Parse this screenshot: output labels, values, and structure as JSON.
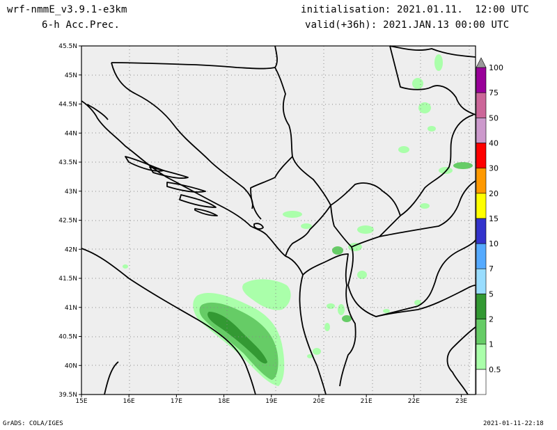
{
  "header": {
    "model": "wrf-nmmE_v3.9.1-e3km",
    "field": "6-h Acc.Prec.",
    "init": "initialisation: 2021.01.11.  12:00 UTC",
    "valid": "valid(+36h): 2021.JAN.13 00:00 UTC"
  },
  "footer": {
    "credit": "GrADS: COLA/IGES",
    "timestamp": "2021-01-11-22:18"
  },
  "map": {
    "lat_labels": [
      "45.5N",
      "45N",
      "44.5N",
      "44N",
      "43.5N",
      "43N",
      "42.5N",
      "42N",
      "41.5N",
      "41N",
      "40.5N",
      "40N",
      "39.5N"
    ],
    "lon_labels": [
      "15E",
      "16E",
      "17E",
      "18E",
      "19E",
      "20E",
      "21E",
      "22E",
      "23E"
    ],
    "lat_range": [
      39.5,
      45.5
    ],
    "lon_range": [
      15.0,
      23.3
    ],
    "grid": "dotted",
    "land_color": "#eeeeee"
  },
  "colorbar": {
    "levels": [
      "0.5",
      "1",
      "2",
      "5",
      "7",
      "10",
      "15",
      "20",
      "30",
      "40",
      "50",
      "75",
      "100"
    ],
    "colors": [
      "#aaffaa",
      "#66cc66",
      "#339933",
      "#99ddff",
      "#55aaff",
      "#3333cc",
      "#ffff00",
      "#ff9900",
      "#ff0000",
      "#cc99cc",
      "#cc6699",
      "#990099"
    ],
    "top_arrow_color": "#999999"
  }
}
